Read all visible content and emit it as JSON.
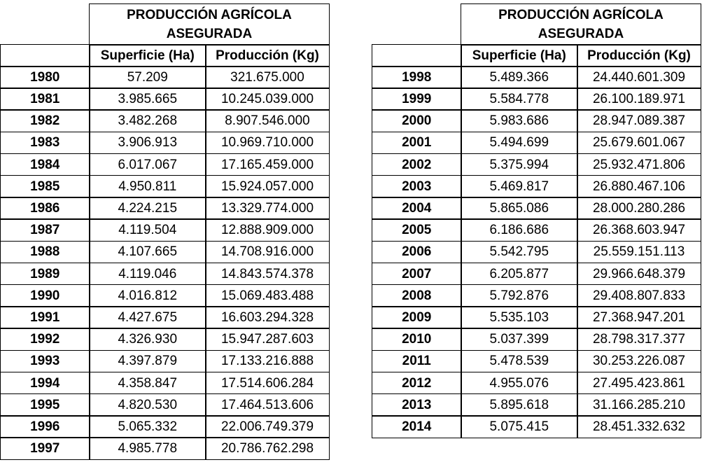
{
  "chart_data": {
    "type": "table",
    "tables": [
      {
        "title_lines": [
          "PRODUCCIÓN  AGRÍCOLA",
          "ASEGURADA"
        ],
        "columns": [
          "",
          "Superficie (Ha)",
          "Producción (Kg)"
        ],
        "rows": [
          [
            "1980",
            "57.209",
            "321.675.000"
          ],
          [
            "1981",
            "3.985.665",
            "10.245.039.000"
          ],
          [
            "1982",
            "3.482.268",
            "8.907.546.000"
          ],
          [
            "1983",
            "3.906.913",
            "10.969.710.000"
          ],
          [
            "1984",
            "6.017.067",
            "17.165.459.000"
          ],
          [
            "1985",
            "4.950.811",
            "15.924.057.000"
          ],
          [
            "1986",
            "4.224.215",
            "13.329.774.000"
          ],
          [
            "1987",
            "4.119.504",
            "12.888.909.000"
          ],
          [
            "1988",
            "4.107.665",
            "14.708.916.000"
          ],
          [
            "1989",
            "4.119.046",
            "14.843.574.378"
          ],
          [
            "1990",
            "4.016.812",
            "15.069.483.488"
          ],
          [
            "1991",
            "4.427.675",
            "16.603.294.328"
          ],
          [
            "1992",
            "4.326.930",
            "15.947.287.603"
          ],
          [
            "1993",
            "4.397.879",
            "17.133.216.888"
          ],
          [
            "1994",
            "4.358.847",
            "17.514.606.284"
          ],
          [
            "1995",
            "4.820.530",
            "17.464.513.606"
          ],
          [
            "1996",
            "5.065.332",
            "22.006.749.379"
          ],
          [
            "1997",
            "4.985.778",
            "20.786.762.298"
          ]
        ]
      },
      {
        "title_lines": [
          "PRODUCCIÓN  AGRÍCOLA",
          "ASEGURADA"
        ],
        "columns": [
          "",
          "Superficie (Ha)",
          "Producción (Kg)"
        ],
        "rows": [
          [
            "1998",
            "5.489.366",
            "24.440.601.309"
          ],
          [
            "1999",
            "5.584.778",
            "26.100.189.971"
          ],
          [
            "2000",
            "5.983.686",
            "28.947.089.387"
          ],
          [
            "2001",
            "5.494.699",
            "25.679.601.067"
          ],
          [
            "2002",
            "5.375.994",
            "25.932.471.806"
          ],
          [
            "2003",
            "5.469.817",
            "26.880.467.106"
          ],
          [
            "2004",
            "5.865.086",
            "28.000.280.286"
          ],
          [
            "2005",
            "6.186.686",
            "26.368.603.947"
          ],
          [
            "2006",
            "5.542.795",
            "25.559.151.113"
          ],
          [
            "2007",
            "6.205.877",
            "29.966.648.379"
          ],
          [
            "2008",
            "5.792.876",
            "29.408.807.833"
          ],
          [
            "2009",
            "5.535.103",
            "27.368.947.201"
          ],
          [
            "2010",
            "5.037.399",
            "28.798.317.377"
          ],
          [
            "2011",
            "5.478.539",
            "30.253.226.087"
          ],
          [
            "2012",
            "4.955.076",
            "27.495.423.861"
          ],
          [
            "2013",
            "5.895.618",
            "31.166.285.210"
          ],
          [
            "2014",
            "5.075.415",
            "28.451.332.632"
          ]
        ]
      }
    ]
  }
}
